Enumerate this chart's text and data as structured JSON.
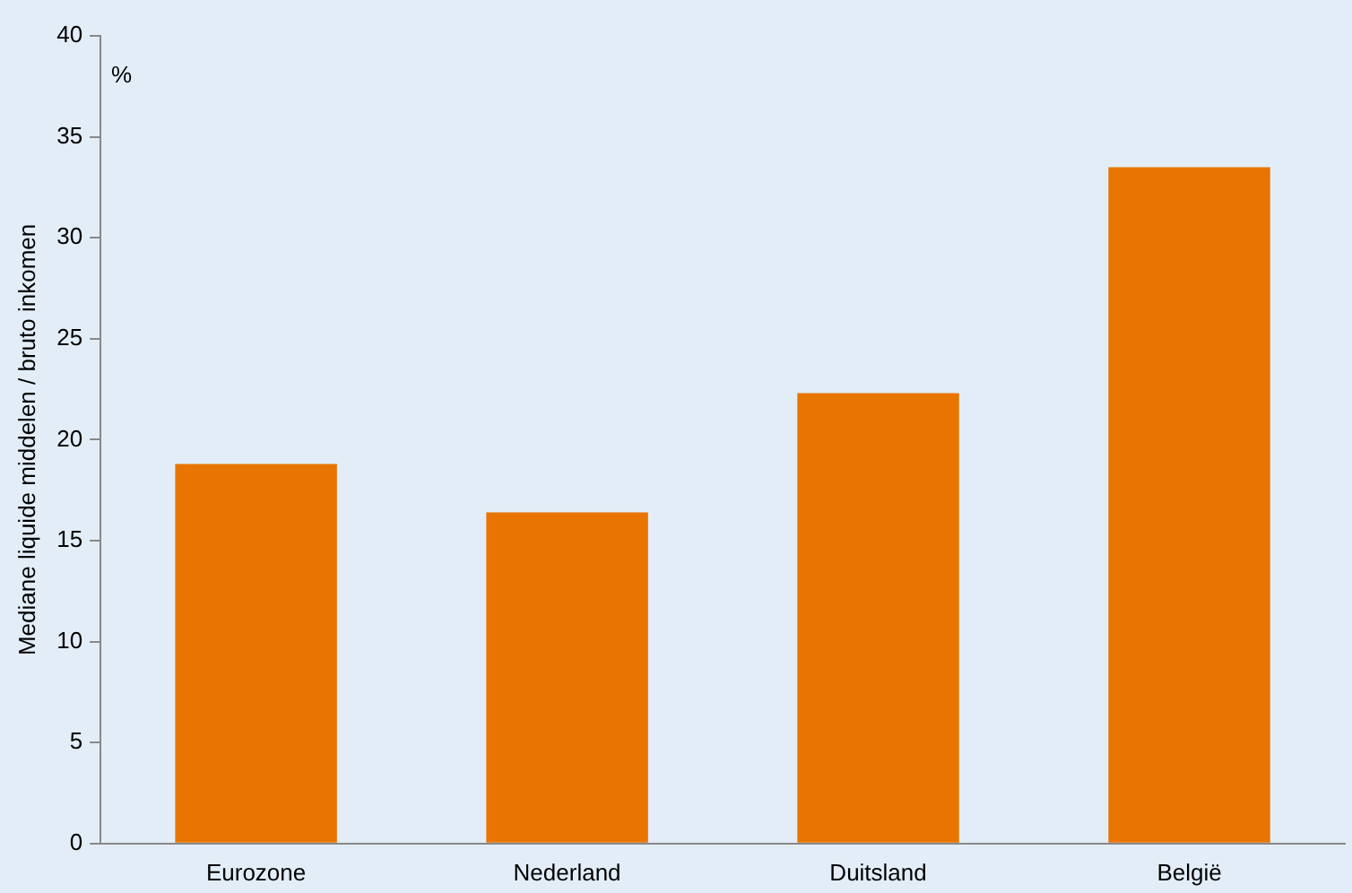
{
  "chart_data": {
    "type": "bar",
    "ylabel": "Mediane liquide middelen / bruto inkomen",
    "annotations": [
      "%"
    ],
    "categories": [
      "Eurozone",
      "Nederland",
      "Duitsland",
      "België"
    ],
    "values": [
      18.8,
      16.4,
      22.3,
      33.5
    ],
    "color": "#e87500",
    "ylim": [
      0,
      40
    ],
    "yticks": [
      0,
      5,
      10,
      15,
      20,
      25,
      30,
      35,
      40
    ],
    "grid": false,
    "legend": false
  }
}
